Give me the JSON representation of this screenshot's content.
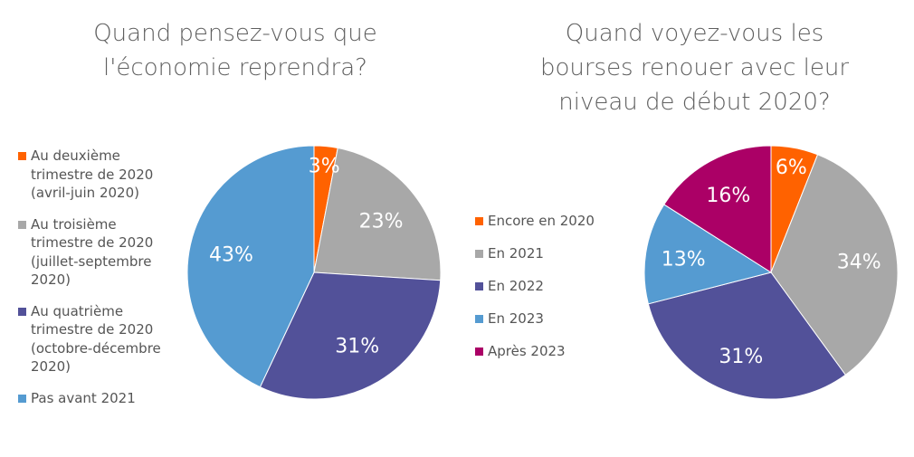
{
  "chart_data": [
    {
      "type": "pie",
      "title": "Quand pensez-vous que l'économie reprendra?",
      "title_lines": [
        "Quand pensez-vous que",
        "l'économie reprendra?"
      ],
      "legend_position": "left",
      "slices": [
        {
          "label": "Au deuxième trimestre de 2020 (avril-juin 2020)",
          "label_lines": [
            "Au deuxième",
            "trimestre de 2020",
            "(avril-juin 2020)"
          ],
          "value": 3,
          "value_label": "3%",
          "color": "#ff6200"
        },
        {
          "label": "Au troisième trimestre de 2020 (juillet-septembre 2020)",
          "label_lines": [
            "Au troisième",
            "trimestre de 2020",
            "(juillet-septembre",
            "2020)"
          ],
          "value": 23,
          "value_label": "23%",
          "color": "#a8a8a8"
        },
        {
          "label": "Au quatrième trimestre de 2020 (octobre-décembre 2020)",
          "label_lines": [
            "Au quatrième",
            "trimestre de 2020",
            "(octobre-décembre",
            "2020)"
          ],
          "value": 31,
          "value_label": "31%",
          "color": "#525199"
        },
        {
          "label": "Pas avant 2021",
          "label_lines": [
            "Pas avant 2021"
          ],
          "value": 43,
          "value_label": "43%",
          "color": "#559bd1"
        }
      ]
    },
    {
      "type": "pie",
      "title": "Quand voyez-vous les bourses renouer avec leur niveau de début 2020?",
      "title_lines": [
        "Quand voyez-vous les",
        "bourses renouer avec leur",
        "niveau de début 2020?"
      ],
      "legend_position": "left",
      "slices": [
        {
          "label": "Encore en 2020",
          "label_lines": [
            "Encore en 2020"
          ],
          "value": 6,
          "value_label": "6%",
          "color": "#ff6200"
        },
        {
          "label": "En 2021",
          "label_lines": [
            "En 2021"
          ],
          "value": 34,
          "value_label": "34%",
          "color": "#a8a8a8"
        },
        {
          "label": "En 2022",
          "label_lines": [
            "En 2022"
          ],
          "value": 31,
          "value_label": "31%",
          "color": "#525199"
        },
        {
          "label": "En 2023",
          "label_lines": [
            "En 2023"
          ],
          "value": 13,
          "value_label": "13%",
          "color": "#559bd1"
        },
        {
          "label": "Après 2023",
          "label_lines": [
            "Après 2023"
          ],
          "value": 16,
          "value_label": "16%",
          "color": "#ab0066"
        }
      ]
    }
  ]
}
